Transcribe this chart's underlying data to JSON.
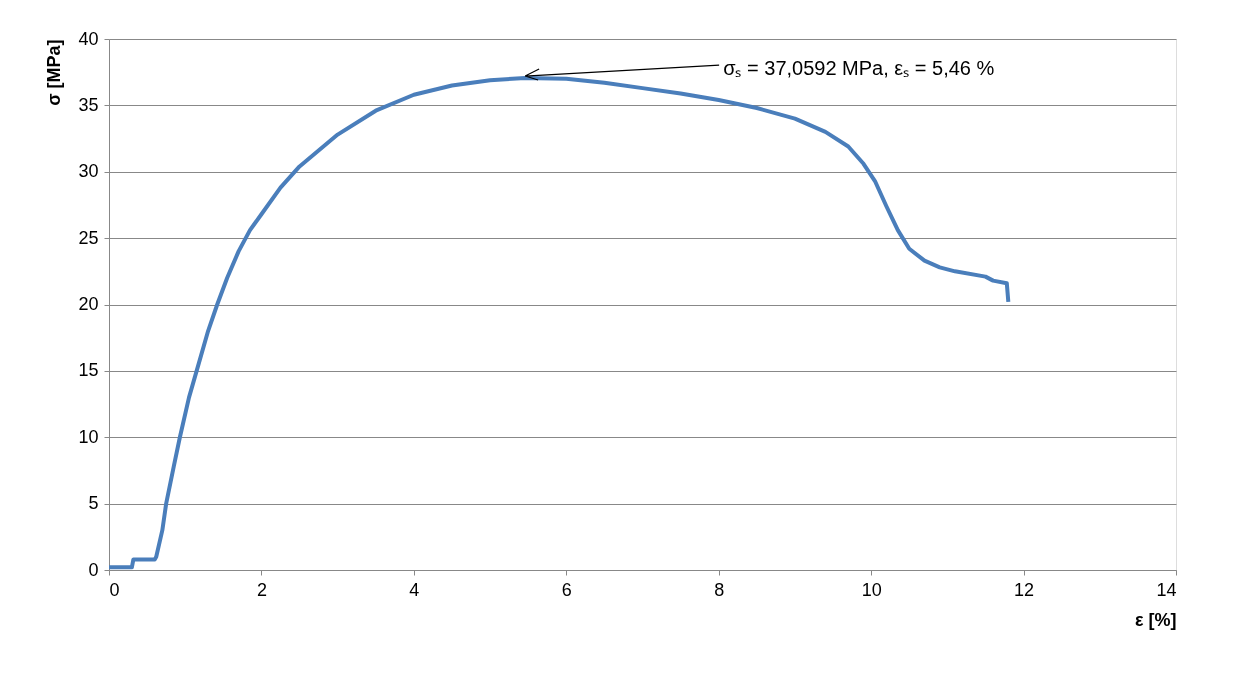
{
  "chart_data": {
    "type": "line",
    "xlabel": "ε [%]",
    "ylabel": "σ [MPa]",
    "x": [
      0,
      0.3,
      0.32,
      0.6,
      0.62,
      0.7,
      0.75,
      0.85,
      0.93,
      1.05,
      1.15,
      1.3,
      1.42,
      1.55,
      1.7,
      1.85,
      2.0,
      2.25,
      2.5,
      3.0,
      3.5,
      4.0,
      4.5,
      5.0,
      5.46,
      6.0,
      6.5,
      7.0,
      7.5,
      8.0,
      8.5,
      9.0,
      9.4,
      9.7,
      9.9,
      10.05,
      10.2,
      10.35,
      10.5,
      10.7,
      10.9,
      11.1,
      11.5,
      11.6,
      11.78,
      11.8
    ],
    "series": [
      {
        "color": "#4a7ebb",
        "values": [
          0.2,
          0.2,
          0.8,
          0.8,
          1.0,
          3.0,
          5.0,
          7.8,
          10.0,
          13.0,
          15.0,
          18.0,
          20.0,
          22.0,
          24.0,
          25.6,
          26.8,
          28.8,
          30.4,
          32.8,
          34.6,
          35.8,
          36.5,
          36.9,
          37.06,
          37.0,
          36.7,
          36.3,
          35.9,
          35.4,
          34.8,
          34.0,
          33.0,
          31.9,
          30.6,
          29.3,
          27.4,
          25.6,
          24.2,
          23.3,
          22.8,
          22.5,
          22.1,
          21.8,
          21.6,
          20.2
        ]
      }
    ],
    "xlim": [
      0,
      14
    ],
    "xticks": [
      0,
      2,
      4,
      6,
      8,
      10,
      12,
      14
    ],
    "ylim": [
      0,
      40
    ],
    "yticks": [
      0,
      5,
      10,
      15,
      20,
      25,
      30,
      35,
      40
    ],
    "grid": "y",
    "marker": "none",
    "line_style": "solid",
    "annotations": [
      {
        "text": "σₛ = 37,0592 MPa, εₛ = 5,46 %",
        "x": 5.46,
        "y": 37.0592
      }
    ]
  }
}
